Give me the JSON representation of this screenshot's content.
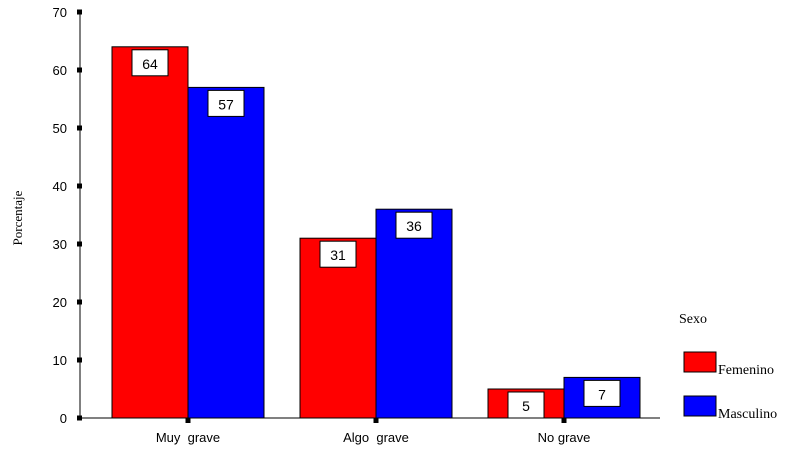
{
  "chart_data": {
    "type": "bar",
    "categories": [
      "Muy  grave",
      "Algo  grave",
      "No grave"
    ],
    "series": [
      {
        "name": "Femenino",
        "values": [
          64,
          31,
          5
        ],
        "labels": [
          "64",
          "31",
          "5"
        ],
        "color": "#ff0000"
      },
      {
        "name": "Masculino",
        "values": [
          57,
          36,
          7
        ],
        "labels": [
          "57",
          "36",
          "7"
        ],
        "color": "#0000ff"
      }
    ],
    "ylabel": "Porcentaje",
    "xlabel": "",
    "ylim": [
      0,
      70
    ],
    "yticks": [
      0,
      10,
      20,
      30,
      40,
      50,
      60,
      70
    ],
    "grid": false,
    "legend": {
      "title": "Sexo",
      "placement": "right"
    }
  }
}
